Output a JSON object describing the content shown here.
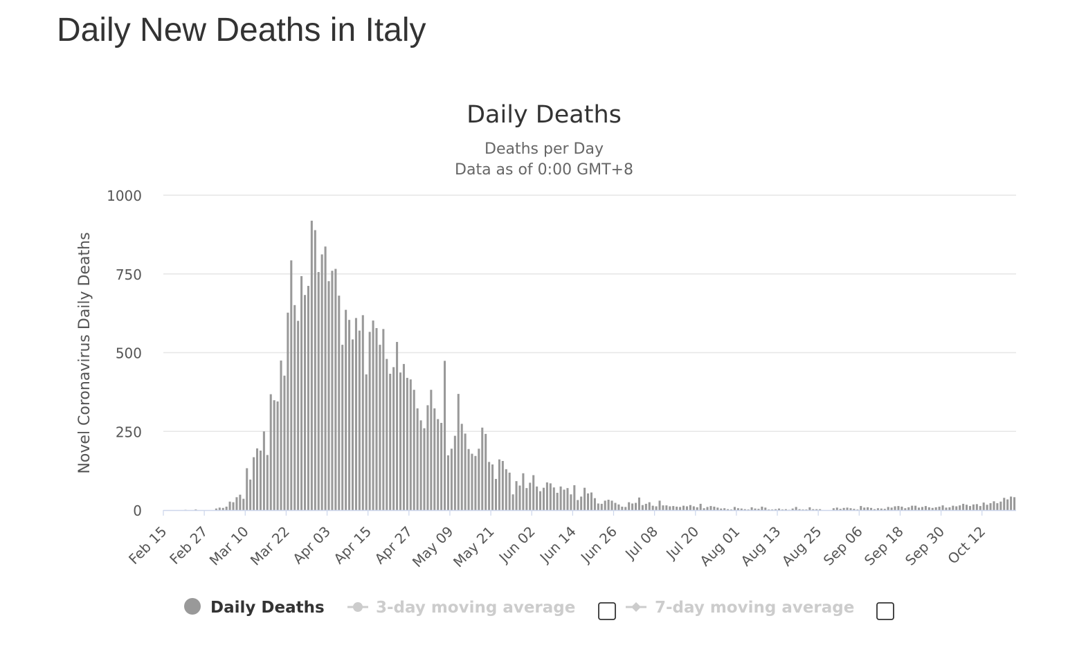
{
  "page": {
    "title": "Daily New Deaths in Italy"
  },
  "chart_data": {
    "type": "bar",
    "title": "Daily Deaths",
    "subtitle_lines": [
      "Deaths per Day",
      "Data as of 0:00 GMT+8"
    ],
    "ylabel": "Novel Coronavirus Daily Deaths",
    "xlabel": "",
    "ylim": [
      0,
      1000
    ],
    "yticks": [
      "0",
      "250",
      "500",
      "750",
      "1000"
    ],
    "x_start": "Feb 15",
    "x_end": "Oct 13",
    "xticks": [
      "Feb 15",
      "Feb 27",
      "Mar 10",
      "Mar 22",
      "Apr 03",
      "Apr 15",
      "Apr 27",
      "May 09",
      "May 21",
      "Jun 02",
      "Jun 14",
      "Jun 26",
      "Jul 08",
      "Jul 20",
      "Aug 01",
      "Aug 13",
      "Aug 25",
      "Sep 06",
      "Sep 18",
      "Sep 30",
      "Oct 12"
    ],
    "grid": true,
    "colors": {
      "bar": "#999999",
      "grid": "#e6e6e6",
      "axis": "#ccd6eb"
    },
    "series": [
      {
        "name": "Daily Deaths",
        "values": [
          0,
          0,
          0,
          0,
          0,
          0,
          1,
          0,
          0,
          2,
          0,
          0,
          0,
          0,
          0,
          5,
          8,
          7,
          11,
          27,
          25,
          41,
          49,
          36,
          133,
          97,
          168,
          196,
          189,
          250,
          175,
          368,
          349,
          345,
          475,
          427,
          627,
          793,
          651,
          601,
          743,
          683,
          712,
          919,
          889,
          756,
          812,
          837,
          727,
          760,
          766,
          681,
          525,
          636,
          604,
          542,
          610,
          570,
          619,
          431,
          566,
          602,
          578,
          525,
          575,
          480,
          433,
          454,
          534,
          437,
          464,
          420,
          415,
          382,
          323,
          285,
          260,
          333,
          382,
          323,
          289,
          277,
          474,
          174,
          195,
          236,
          369,
          274,
          243,
          194,
          179,
          172,
          195,
          262,
          242,
          153,
          145,
          99,
          161,
          156,
          130,
          119,
          50,
          92,
          78,
          117,
          70,
          87,
          111,
          75,
          60,
          71,
          88,
          85,
          72,
          55,
          75,
          65,
          70,
          50,
          79,
          32,
          43,
          71,
          53,
          56,
          38,
          21,
          20,
          30,
          33,
          30,
          23,
          18,
          11,
          10,
          25,
          21,
          23,
          40,
          16,
          20,
          25,
          14,
          12,
          30,
          15,
          15,
          12,
          13,
          11,
          10,
          14,
          12,
          16,
          12,
          9,
          20,
          6,
          10,
          13,
          11,
          8,
          5,
          6,
          3,
          2,
          10,
          6,
          5,
          3,
          2,
          9,
          5,
          4,
          11,
          8,
          2,
          2,
          3,
          5,
          2,
          3,
          1,
          5,
          10,
          3,
          2,
          2,
          9,
          3,
          3,
          3,
          0,
          0,
          0,
          6,
          8,
          4,
          7,
          8,
          6,
          4,
          2,
          13,
          8,
          9,
          7,
          3,
          6,
          5,
          4,
          10,
          8,
          12,
          13,
          11,
          6,
          9,
          14,
          14,
          8,
          10,
          13,
          9,
          7,
          9,
          11,
          15,
          8,
          9,
          14,
          12,
          15,
          20,
          17,
          13,
          18,
          19,
          13,
          24,
          17,
          22,
          28,
          22,
          27,
          39,
          34,
          43,
          41
        ]
      },
      {
        "name": "3-day moving average",
        "visible": false
      },
      {
        "name": "7-day moving average",
        "visible": false
      }
    ]
  }
}
